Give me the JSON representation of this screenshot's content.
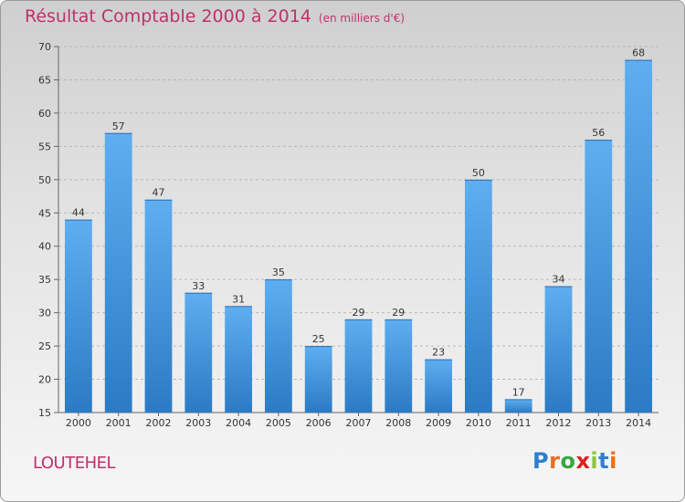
{
  "title": "Résultat Comptable 2000 à 2014",
  "unit": "(en milliers d'€)",
  "commune": "LOUTEHEL",
  "logo": {
    "letters": [
      "P",
      "r",
      "o",
      "x",
      "i",
      "t",
      "i"
    ],
    "colors": [
      "#2f7fd1",
      "#e86f1a",
      "#36a843",
      "#d8231e",
      "#8cc63f",
      "#2f7fd1",
      "#e86f1a"
    ]
  },
  "chart_data": {
    "type": "bar",
    "categories": [
      "2000",
      "2001",
      "2002",
      "2003",
      "2004",
      "2005",
      "2006",
      "2007",
      "2008",
      "2009",
      "2010",
      "2011",
      "2012",
      "2013",
      "2014"
    ],
    "values": [
      44,
      57,
      47,
      33,
      31,
      35,
      25,
      29,
      29,
      23,
      50,
      17,
      34,
      56,
      68
    ],
    "ylim": [
      15,
      70
    ],
    "yticks": [
      15,
      20,
      25,
      30,
      35,
      40,
      45,
      50,
      55,
      60,
      65,
      70
    ],
    "grid": true,
    "bar_color": "#4a9de0"
  }
}
